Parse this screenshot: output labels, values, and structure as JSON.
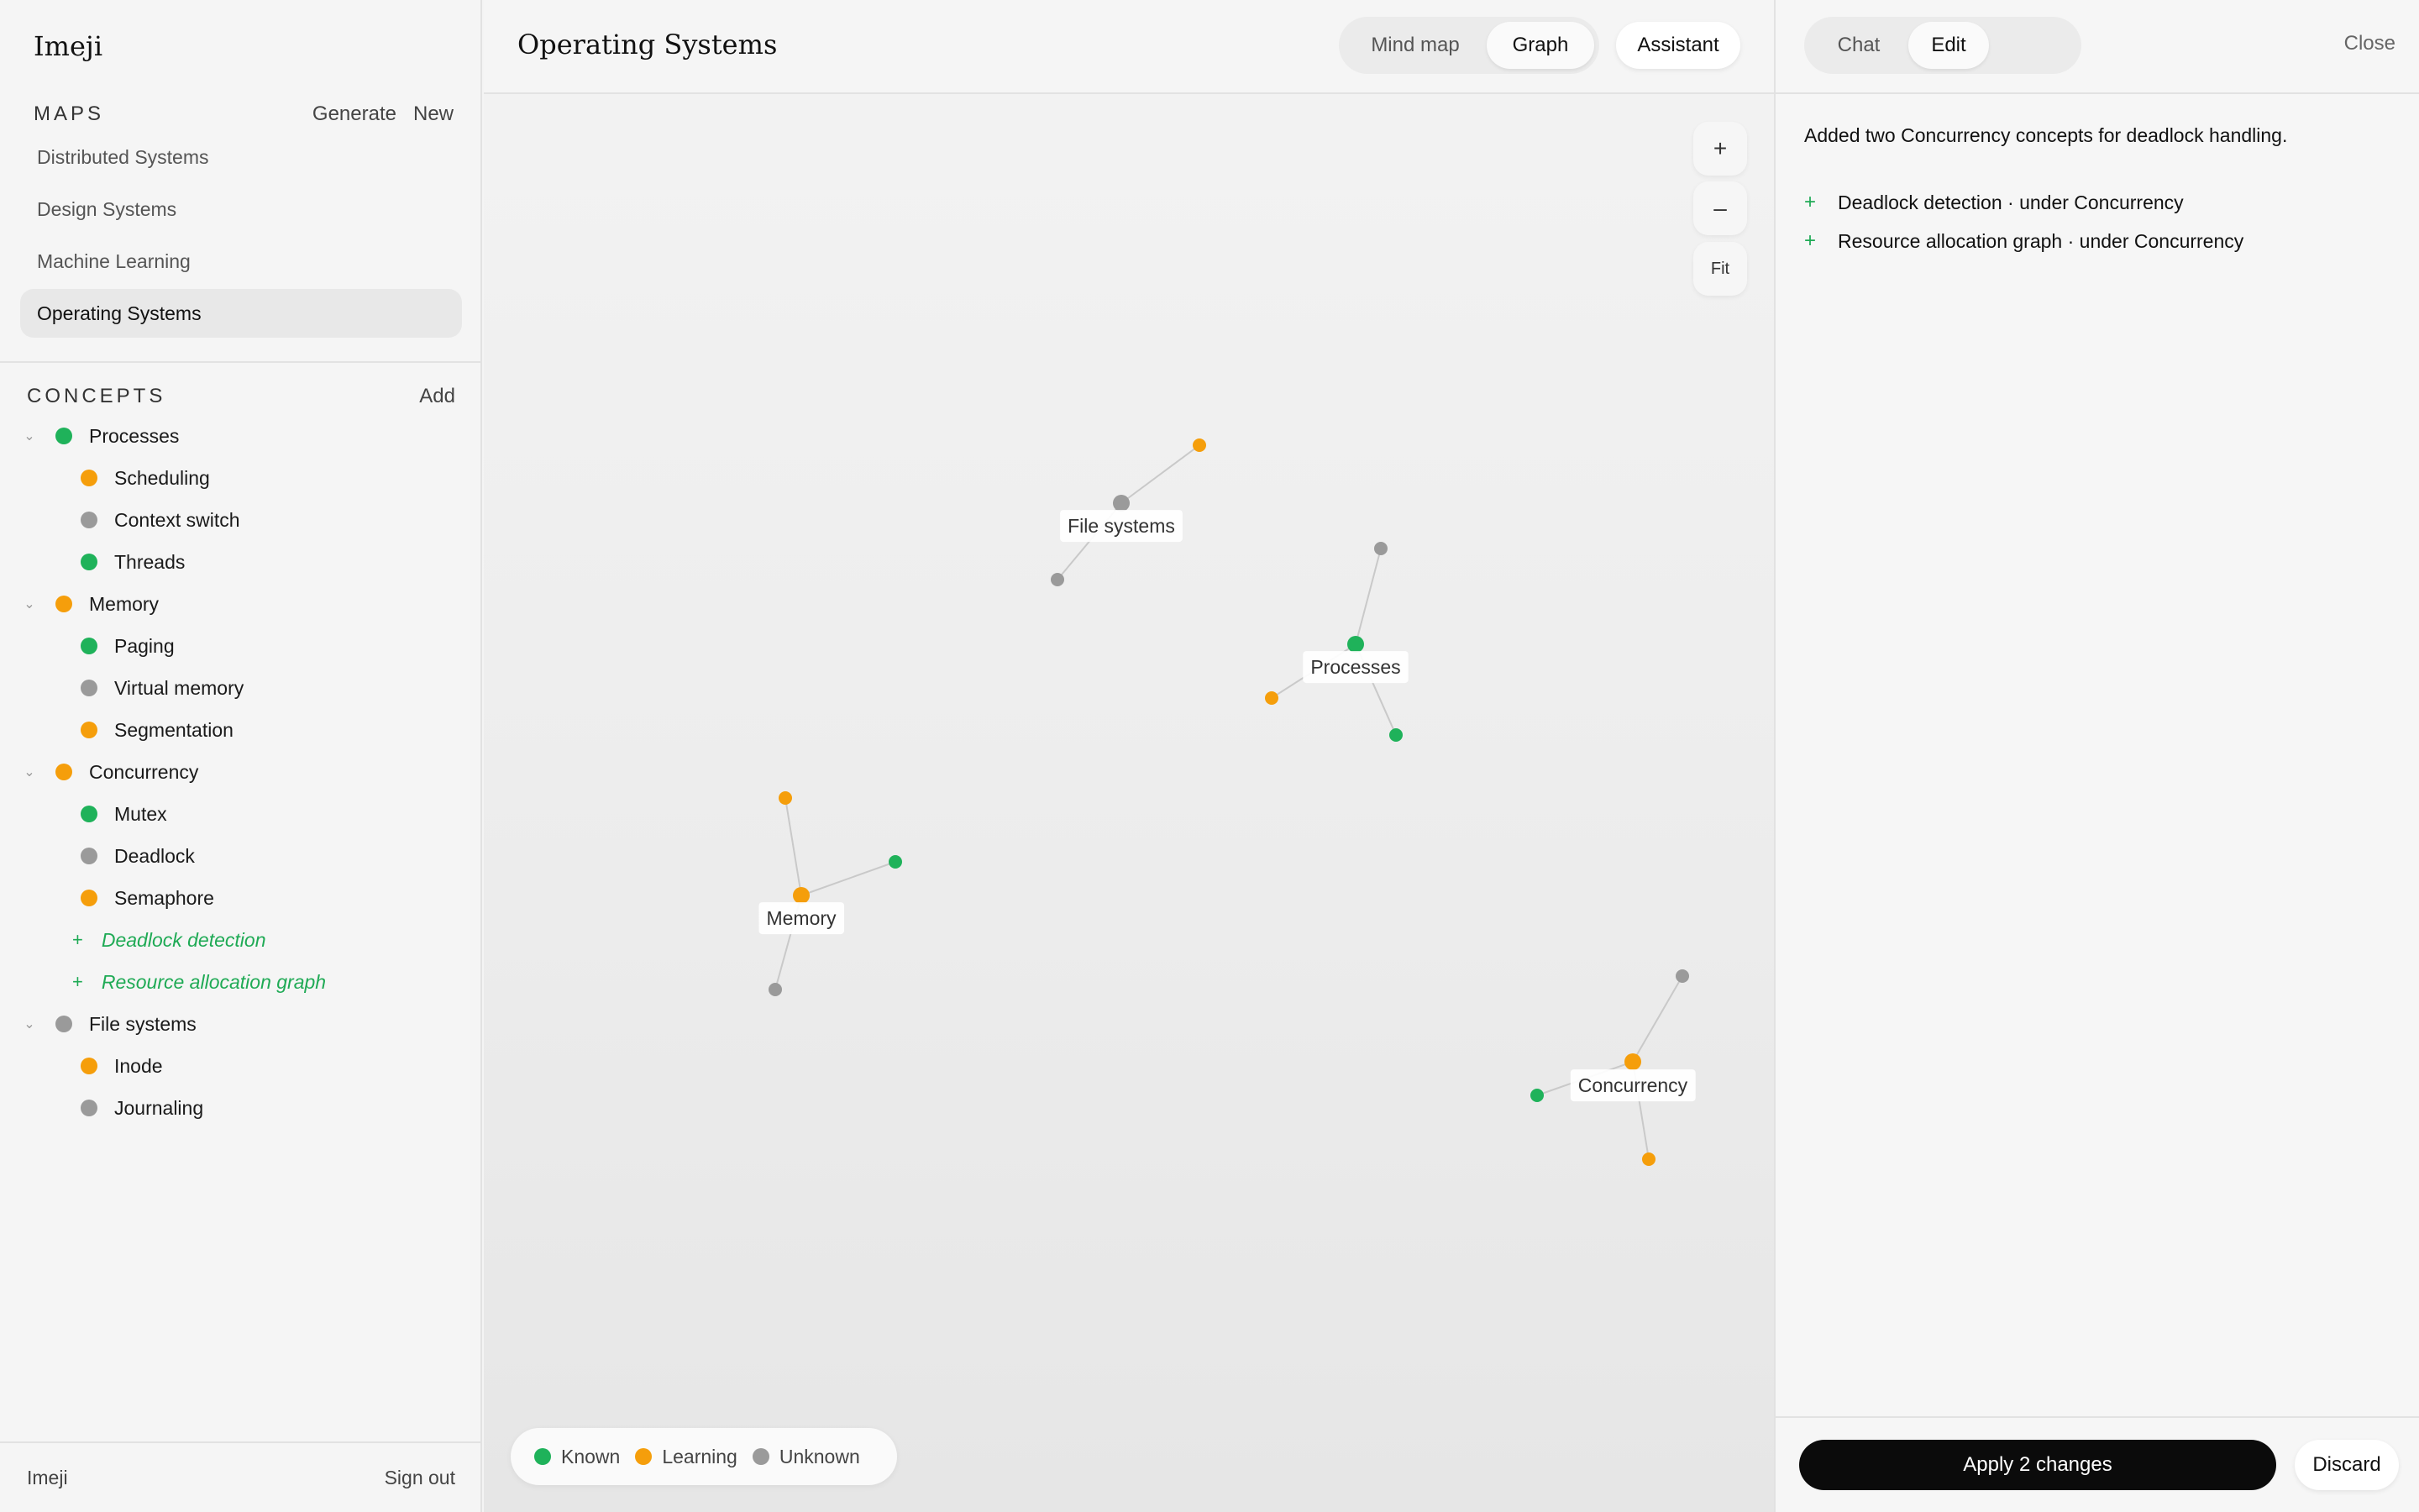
{
  "app": {
    "name": "Imeji"
  },
  "colors": {
    "known": "#1fb25a",
    "learning": "#f59e0b",
    "unknown": "#9a9a9a",
    "added": "#1faa55"
  },
  "sidebar": {
    "maps_label": "MAPS",
    "generate_label": "Generate",
    "new_label": "New",
    "maps": [
      {
        "label": "Distributed Systems",
        "active": false
      },
      {
        "label": "Design Systems",
        "active": false
      },
      {
        "label": "Machine Learning",
        "active": false
      },
      {
        "label": "Operating Systems",
        "active": true
      }
    ],
    "concepts_label": "CONCEPTS",
    "add_label": "Add",
    "concepts": [
      {
        "label": "Processes",
        "status": "known",
        "children": [
          {
            "label": "Scheduling",
            "status": "learning"
          },
          {
            "label": "Context switch",
            "status": "unknown"
          },
          {
            "label": "Threads",
            "status": "known"
          }
        ]
      },
      {
        "label": "Memory",
        "status": "learning",
        "children": [
          {
            "label": "Paging",
            "status": "known"
          },
          {
            "label": "Virtual memory",
            "status": "unknown"
          },
          {
            "label": "Segmentation",
            "status": "learning"
          }
        ]
      },
      {
        "label": "Concurrency",
        "status": "learning",
        "children": [
          {
            "label": "Mutex",
            "status": "known"
          },
          {
            "label": "Deadlock",
            "status": "unknown"
          },
          {
            "label": "Semaphore",
            "status": "learning"
          }
        ],
        "added": [
          "Deadlock detection",
          "Resource allocation graph"
        ]
      },
      {
        "label": "File systems",
        "status": "unknown",
        "children": [
          {
            "label": "Inode",
            "status": "learning"
          },
          {
            "label": "Journaling",
            "status": "unknown"
          }
        ]
      }
    ],
    "chevron_icon": "chevron-down-icon",
    "added_icon": "plus-icon",
    "footer_name": "Imeji",
    "signout_label": "Sign out"
  },
  "main": {
    "title": "Operating Systems",
    "view_options": [
      "Mind map",
      "Graph"
    ],
    "active_view": "Graph",
    "assistant_label": "Assistant",
    "zoom_in_label": "+",
    "zoom_out_label": "–",
    "fit_label": "Fit",
    "legend": [
      {
        "label": "Known",
        "status": "known"
      },
      {
        "label": "Learning",
        "status": "learning"
      },
      {
        "label": "Unknown",
        "status": "unknown"
      }
    ],
    "graph_clusters": [
      {
        "label": "File systems",
        "status": "unknown",
        "children": [
          "learning",
          "unknown"
        ]
      },
      {
        "label": "Processes",
        "status": "known",
        "children": [
          "unknown",
          "learning",
          "known"
        ]
      },
      {
        "label": "Memory",
        "status": "learning",
        "children": [
          "learning",
          "known",
          "unknown"
        ]
      },
      {
        "label": "Concurrency",
        "status": "learning",
        "children": [
          "unknown",
          "known",
          "learning"
        ]
      }
    ]
  },
  "panel": {
    "tabs": [
      "Chat",
      "Edit"
    ],
    "active_tab": "Edit",
    "close_label": "Close",
    "summary": "Added two Concurrency concepts for deadlock handling.",
    "changes": [
      {
        "icon": "+",
        "text": "Deadlock detection · under Concurrency"
      },
      {
        "icon": "+",
        "text": "Resource allocation graph · under Concurrency"
      }
    ],
    "apply_label": "Apply 2 changes",
    "discard_label": "Discard"
  }
}
